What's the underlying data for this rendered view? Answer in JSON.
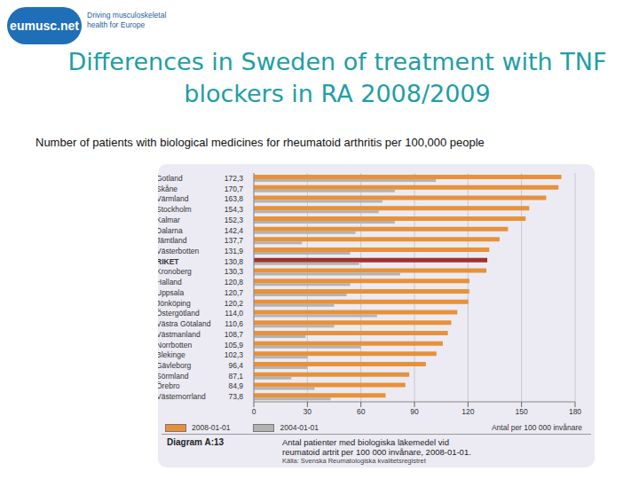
{
  "header": {
    "logo": "eumusc.net",
    "tagline": [
      "Driving musculoskeletal",
      "health for Europe"
    ]
  },
  "title": "Differences in Sweden of treatment with TNF blockers in RA 2008/2009",
  "subtitle": "Number of patients with biological medicines for rheumatoid arthritis per 100,000 people",
  "chart_data": {
    "type": "bar",
    "orientation": "horizontal",
    "categories": [
      "Gotland",
      "Skåne",
      "Värmland",
      "Stockholm",
      "Kalmar",
      "Dalarna",
      "Jämtland",
      "Västerbotten",
      "RIKET",
      "Kronoberg",
      "Halland",
      "Uppsala",
      "Jönköping",
      "Östergötland",
      "Västra Götaland",
      "Västmanland",
      "Norrbotten",
      "Blekinge",
      "Gävleborg",
      "Sörmland",
      "Örebro",
      "Västernorrland"
    ],
    "series": [
      {
        "name": "2008-01-01",
        "color": "#e8913a",
        "colors": [
          "#e8913a",
          "#e8913a",
          "#e8913a",
          "#e8913a",
          "#e8913a",
          "#e8913a",
          "#e8913a",
          "#e8913a",
          "#a3302c",
          "#e8913a",
          "#e8913a",
          "#e8913a",
          "#e8913a",
          "#e8913a",
          "#e8913a",
          "#e8913a",
          "#e8913a",
          "#e8913a",
          "#e8913a",
          "#e8913a",
          "#e8913a",
          "#e8913a"
        ],
        "values": [
          172.3,
          170.7,
          163.8,
          154.3,
          152.3,
          142.4,
          137.7,
          131.9,
          130.8,
          130.3,
          120.8,
          120.7,
          120.2,
          114.0,
          110.6,
          108.7,
          105.9,
          102.3,
          96.4,
          87.1,
          84.9,
          73.8
        ],
        "value_labels": [
          "172,3",
          "170,7",
          "163,8",
          "154,3",
          "152,3",
          "142,4",
          "137,7",
          "131,9",
          "130,8",
          "130,3",
          "120,8",
          "120,7",
          "120,2",
          "114,0",
          "110,6",
          "108,7",
          "105,9",
          "102,3",
          "96,4",
          "87,1",
          "84,9",
          "73,8"
        ]
      },
      {
        "name": "2004-01-01",
        "color": "#b3b3b3",
        "values": [
          102,
          79,
          72,
          70,
          79,
          57,
          27,
          54,
          59,
          82,
          54,
          52,
          45,
          69,
          45,
          29,
          60,
          30,
          30,
          21,
          34,
          43
        ]
      }
    ],
    "xlim": [
      0,
      180
    ],
    "xticks": [
      0,
      30,
      60,
      90,
      120,
      150,
      180
    ],
    "xlabel": "Antal per 100 000 invånare",
    "grid": true,
    "legend": "bottom"
  },
  "caption": {
    "label": "Diagram A:13",
    "text": [
      "Antal patienter med biologiska läkemedel vid",
      "reumatoid artrit per 100 000 invånare, 2008-01-01."
    ],
    "source": "Källa: Svenska Reumatologiska kvalitetsregistret"
  }
}
